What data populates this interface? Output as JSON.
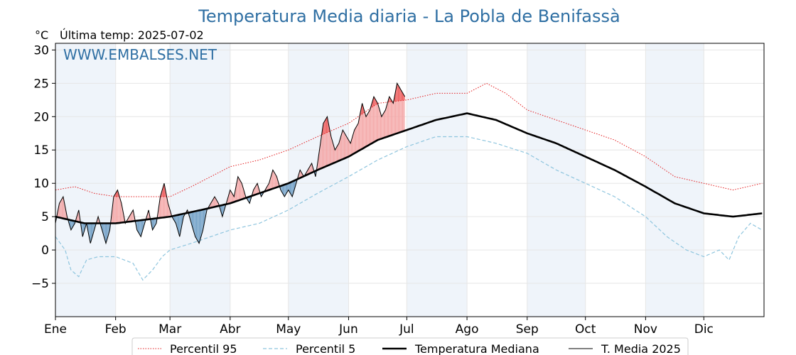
{
  "chart_data": {
    "type": "line",
    "title": "Temperatura Media diaria - La Pobla de Benifassà",
    "unit_label": "°C",
    "last_temp_label": "Última temp: 2025-07-02",
    "watermark": "WWW.EMBALSES.NET",
    "ylim": [
      -10,
      31
    ],
    "yticks": [
      {
        "value": 30,
        "label": "30"
      },
      {
        "value": 25,
        "label": "25"
      },
      {
        "value": 20,
        "label": "20"
      },
      {
        "value": 15,
        "label": "15"
      },
      {
        "value": 10,
        "label": "10"
      },
      {
        "value": 5,
        "label": "5"
      },
      {
        "value": 0,
        "label": "0"
      },
      {
        "value": -5,
        "label": "−5"
      }
    ],
    "months": [
      "Ene",
      "Feb",
      "Mar",
      "Abr",
      "May",
      "Jun",
      "Jul",
      "Ago",
      "Sep",
      "Oct",
      "Nov",
      "Dic"
    ],
    "month_start_days": [
      0,
      31,
      59,
      90,
      120,
      151,
      181,
      212,
      243,
      273,
      304,
      334,
      365
    ],
    "grid": true,
    "legend_position": "bottom",
    "colors": {
      "p95": "#e31a1c",
      "p5": "#8ec5de",
      "median": "#000000",
      "current": "#000000",
      "above_fill": "#f4a6a6",
      "above_strong_fill": "#ee5e5e",
      "below_fill": "#6f9fc6",
      "below_strong_fill": "#1f5f9a",
      "band": "#e8f0f8"
    },
    "series": [
      {
        "name": "Percentil 95",
        "style": "dotted",
        "knots": [
          [
            0,
            9
          ],
          [
            10,
            9.5
          ],
          [
            20,
            8.5
          ],
          [
            31,
            8
          ],
          [
            45,
            8
          ],
          [
            59,
            8
          ],
          [
            70,
            9.5
          ],
          [
            80,
            11
          ],
          [
            90,
            12.5
          ],
          [
            105,
            13.5
          ],
          [
            120,
            15
          ],
          [
            135,
            17
          ],
          [
            151,
            19
          ],
          [
            166,
            22
          ],
          [
            181,
            22.5
          ],
          [
            196,
            23.5
          ],
          [
            212,
            23.5
          ],
          [
            222,
            25
          ],
          [
            232,
            23.5
          ],
          [
            243,
            21
          ],
          [
            258,
            19.5
          ],
          [
            273,
            18
          ],
          [
            288,
            16.5
          ],
          [
            304,
            14
          ],
          [
            319,
            11
          ],
          [
            334,
            10
          ],
          [
            349,
            9
          ],
          [
            364,
            10
          ]
        ]
      },
      {
        "name": "Percentil 5",
        "style": "dashed",
        "knots": [
          [
            0,
            2
          ],
          [
            5,
            0
          ],
          [
            8,
            -3
          ],
          [
            12,
            -4
          ],
          [
            16,
            -1.5
          ],
          [
            22,
            -1
          ],
          [
            31,
            -1
          ],
          [
            40,
            -2
          ],
          [
            45,
            -4.5
          ],
          [
            50,
            -3
          ],
          [
            55,
            -1
          ],
          [
            59,
            0
          ],
          [
            70,
            1
          ],
          [
            80,
            2
          ],
          [
            90,
            3
          ],
          [
            105,
            4
          ],
          [
            120,
            6
          ],
          [
            135,
            8.5
          ],
          [
            151,
            11
          ],
          [
            166,
            13.5
          ],
          [
            181,
            15.5
          ],
          [
            196,
            17
          ],
          [
            212,
            17
          ],
          [
            227,
            16
          ],
          [
            243,
            14.5
          ],
          [
            258,
            12
          ],
          [
            273,
            10
          ],
          [
            288,
            8
          ],
          [
            304,
            5
          ],
          [
            315,
            2
          ],
          [
            325,
            0
          ],
          [
            334,
            -1
          ],
          [
            342,
            0
          ],
          [
            347,
            -1.5
          ],
          [
            352,
            2
          ],
          [
            358,
            4
          ],
          [
            364,
            3
          ]
        ]
      },
      {
        "name": "Temperatura Mediana",
        "style": "solid-thick",
        "knots": [
          [
            0,
            5
          ],
          [
            15,
            4
          ],
          [
            31,
            4
          ],
          [
            45,
            4.5
          ],
          [
            59,
            5
          ],
          [
            75,
            6
          ],
          [
            90,
            7
          ],
          [
            105,
            8.5
          ],
          [
            120,
            10
          ],
          [
            135,
            12
          ],
          [
            151,
            14
          ],
          [
            166,
            16.5
          ],
          [
            181,
            18
          ],
          [
            196,
            19.5
          ],
          [
            212,
            20.5
          ],
          [
            227,
            19.5
          ],
          [
            243,
            17.5
          ],
          [
            258,
            16
          ],
          [
            273,
            14
          ],
          [
            288,
            12
          ],
          [
            304,
            9.5
          ],
          [
            319,
            7
          ],
          [
            334,
            5.5
          ],
          [
            349,
            5
          ],
          [
            364,
            5.5
          ]
        ]
      },
      {
        "name": "T. Media 2025",
        "style": "solid-thin",
        "knots": [
          [
            0,
            4
          ],
          [
            2,
            7
          ],
          [
            4,
            8
          ],
          [
            6,
            5
          ],
          [
            8,
            3
          ],
          [
            10,
            4
          ],
          [
            12,
            6
          ],
          [
            14,
            2
          ],
          [
            16,
            4
          ],
          [
            18,
            1
          ],
          [
            20,
            3
          ],
          [
            22,
            5
          ],
          [
            24,
            3
          ],
          [
            26,
            1
          ],
          [
            28,
            3
          ],
          [
            30,
            8
          ],
          [
            32,
            9
          ],
          [
            34,
            7
          ],
          [
            36,
            4
          ],
          [
            38,
            5
          ],
          [
            40,
            6
          ],
          [
            42,
            3
          ],
          [
            44,
            2
          ],
          [
            46,
            4
          ],
          [
            48,
            6
          ],
          [
            50,
            3
          ],
          [
            52,
            4
          ],
          [
            54,
            8
          ],
          [
            56,
            10
          ],
          [
            58,
            7
          ],
          [
            60,
            5
          ],
          [
            62,
            4
          ],
          [
            64,
            2
          ],
          [
            66,
            5
          ],
          [
            68,
            6
          ],
          [
            70,
            4
          ],
          [
            72,
            2
          ],
          [
            74,
            1
          ],
          [
            76,
            3
          ],
          [
            78,
            6
          ],
          [
            80,
            7
          ],
          [
            82,
            8
          ],
          [
            84,
            7
          ],
          [
            86,
            5
          ],
          [
            88,
            7
          ],
          [
            90,
            9
          ],
          [
            92,
            8
          ],
          [
            94,
            11
          ],
          [
            96,
            10
          ],
          [
            98,
            8
          ],
          [
            100,
            7
          ],
          [
            102,
            9
          ],
          [
            104,
            10
          ],
          [
            106,
            8
          ],
          [
            108,
            9
          ],
          [
            110,
            10
          ],
          [
            112,
            12
          ],
          [
            114,
            11
          ],
          [
            116,
            9
          ],
          [
            118,
            8
          ],
          [
            120,
            9
          ],
          [
            122,
            8
          ],
          [
            124,
            10
          ],
          [
            126,
            12
          ],
          [
            128,
            11
          ],
          [
            130,
            12
          ],
          [
            132,
            13
          ],
          [
            134,
            11
          ],
          [
            136,
            15
          ],
          [
            138,
            19
          ],
          [
            140,
            20
          ],
          [
            142,
            17
          ],
          [
            144,
            15
          ],
          [
            146,
            16
          ],
          [
            148,
            18
          ],
          [
            150,
            17
          ],
          [
            152,
            16
          ],
          [
            154,
            18
          ],
          [
            156,
            19
          ],
          [
            158,
            22
          ],
          [
            160,
            20
          ],
          [
            162,
            21
          ],
          [
            164,
            23
          ],
          [
            166,
            22
          ],
          [
            168,
            20
          ],
          [
            170,
            21
          ],
          [
            172,
            23
          ],
          [
            174,
            22
          ],
          [
            176,
            25
          ],
          [
            178,
            24
          ],
          [
            180,
            23
          ]
        ]
      }
    ]
  },
  "legend": {
    "p95": "Percentil 95",
    "p5": "Percentil 5",
    "median": "Temperatura Mediana",
    "current": "T. Media 2025"
  }
}
